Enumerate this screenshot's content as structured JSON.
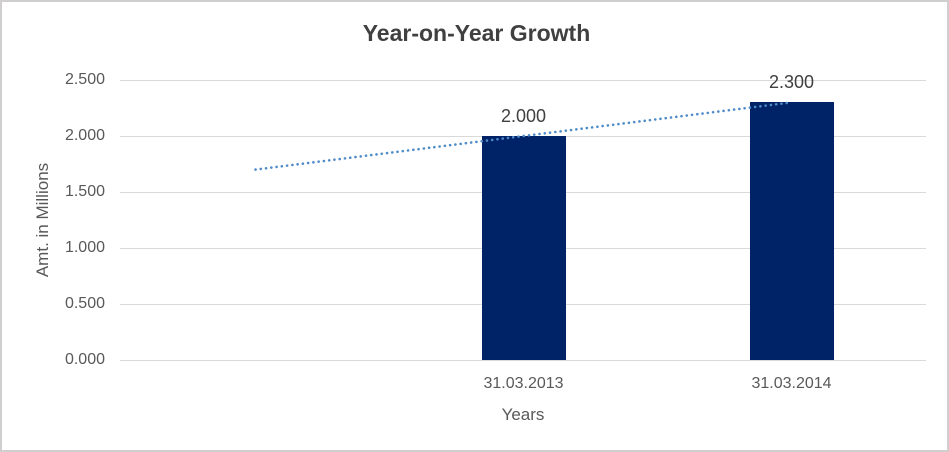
{
  "chart_data": {
    "type": "bar",
    "title": "Year-on-Year Growth",
    "xlabel": "Years",
    "ylabel": "Amt. in Millions",
    "categories": [
      "31.03.2013",
      "31.03.2014"
    ],
    "values": [
      2.0,
      2.3
    ],
    "data_labels": [
      "2.000",
      "2.300"
    ],
    "yticks": [
      "0.000",
      "0.500",
      "1.000",
      "1.500",
      "2.000",
      "2.500"
    ],
    "ylim": [
      0,
      2.5
    ],
    "grid": "horizontal-on",
    "legend": "none",
    "bar_color": "#002266",
    "gridline_color": "#d9d9d9",
    "trendline": {
      "style": "dotted",
      "color": "#4e8bc9",
      "points": [
        {
          "slot": 0,
          "value": 1.7
        },
        {
          "slot": 2,
          "value": 2.3
        }
      ]
    }
  },
  "text_colors": {
    "title": "#404040",
    "axis_text": "#595959",
    "data_label": "#404040"
  }
}
